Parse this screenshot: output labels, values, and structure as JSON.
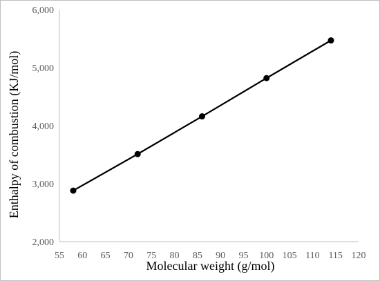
{
  "chart_data": {
    "type": "line",
    "title": "",
    "xlabel": "Molecular weight (g/mol)",
    "ylabel": "Enthalpy of combustion (KJ/mol)",
    "xlim": [
      55,
      120
    ],
    "ylim": [
      2000,
      6000
    ],
    "x_ticks": [
      55,
      60,
      65,
      70,
      75,
      80,
      85,
      90,
      95,
      100,
      105,
      110,
      115,
      120
    ],
    "y_ticks": [
      2000,
      3000,
      4000,
      5000,
      6000
    ],
    "y_tick_labels": [
      "2,000",
      "3,000",
      "4,000",
      "5,000",
      "6,000"
    ],
    "grid": false,
    "legend": "none",
    "series": [
      {
        "x": [
          58,
          72,
          86,
          100,
          114
        ],
        "y": [
          2880,
          3510,
          4160,
          4820,
          5470
        ],
        "color": "#000000",
        "marker": "circle"
      }
    ]
  }
}
